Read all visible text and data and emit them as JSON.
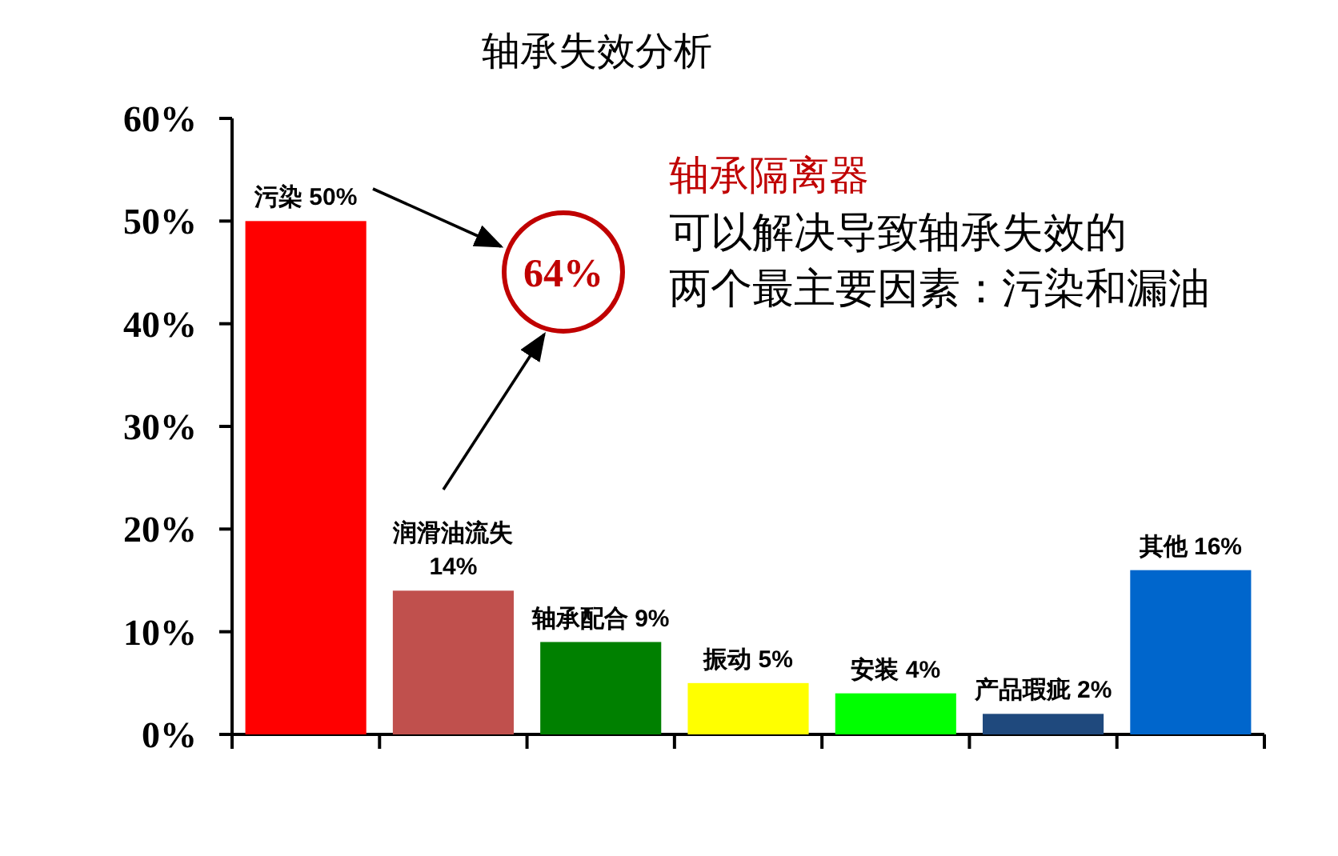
{
  "chart_data": {
    "type": "bar",
    "title": "轴承失效分析",
    "categories": [
      "污染",
      "润滑油流失",
      "轴承配合",
      "振动",
      "安装",
      "产品瑕疵",
      "其他"
    ],
    "values": [
      50,
      14,
      9,
      5,
      4,
      2,
      16
    ],
    "value_labels": [
      "50%",
      "14%",
      "9%",
      "5%",
      "4%",
      "2%",
      "16%"
    ],
    "colors": [
      "#ff0000",
      "#c0504d",
      "#008000",
      "#ffff00",
      "#00ff00",
      "#1f497d",
      "#0066cc"
    ],
    "ylim": [
      0,
      60
    ],
    "yticks": [
      {
        "value": 0,
        "label": "0%"
      },
      {
        "value": 10,
        "label": "10%"
      },
      {
        "value": 20,
        "label": "20%"
      },
      {
        "value": 30,
        "label": "30%"
      },
      {
        "value": 40,
        "label": "40%"
      },
      {
        "value": 50,
        "label": "50%"
      },
      {
        "value": 60,
        "label": "60%"
      }
    ],
    "grid": false,
    "annotations": [
      "64%",
      "轴承隔离器",
      "可以解决导致轴承失效的",
      "两个最主要因素：污染和漏油"
    ]
  }
}
